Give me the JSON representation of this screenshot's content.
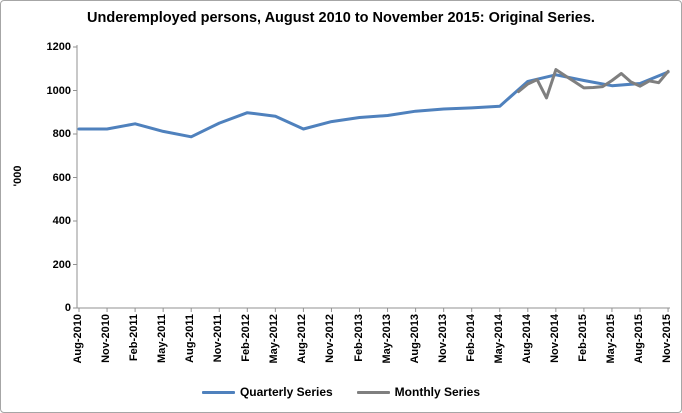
{
  "colors": {
    "quarterly": "#4F81BD",
    "monthly": "#7F7F7F",
    "axis": "#919191",
    "text": "#000000",
    "frame_border": "#A6A6A6",
    "background": "#FFFFFF"
  },
  "chart_data": {
    "type": "line",
    "title": "Underemployed persons, August 2010 to November 2015: Original Series.",
    "xlabel": "",
    "ylabel": "'000",
    "ylim": [
      0,
      1200
    ],
    "y_ticks": [
      0,
      200,
      400,
      600,
      800,
      1000,
      1200
    ],
    "grid": false,
    "legend_position": "bottom",
    "categories": [
      "Aug-2010",
      "Nov-2010",
      "Feb-2011",
      "May-2011",
      "Aug-2011",
      "Nov-2011",
      "Feb-2012",
      "May-2012",
      "Aug-2012",
      "Nov-2012",
      "Feb-2013",
      "May-2013",
      "Aug-2013",
      "Nov-2013",
      "Feb-2014",
      "May-2014",
      "Aug-2014",
      "Nov-2014",
      "Feb-2015",
      "May-2015",
      "Aug-2015",
      "Nov-2015"
    ],
    "series": [
      {
        "name": "Quarterly Series",
        "color": "#4F81BD",
        "x_labels": [
          "Aug-2010",
          "Nov-2010",
          "Feb-2011",
          "May-2011",
          "Aug-2011",
          "Nov-2011",
          "Feb-2012",
          "May-2012",
          "Aug-2012",
          "Nov-2012",
          "Feb-2013",
          "May-2013",
          "Aug-2013",
          "Nov-2013",
          "Feb-2014",
          "May-2014",
          "Aug-2014",
          "Nov-2014",
          "Feb-2015",
          "May-2015",
          "Aug-2015",
          "Nov-2015"
        ],
        "x_quarter_index": [
          0,
          1,
          2,
          3,
          4,
          5,
          6,
          7,
          8,
          9,
          10,
          11,
          12,
          13,
          14,
          15,
          16,
          17,
          18,
          19,
          20,
          21
        ],
        "values": [
          823,
          823,
          847,
          812,
          787,
          850,
          898,
          882,
          823,
          857,
          876,
          885,
          905,
          915,
          920,
          928,
          1042,
          1072,
          1046,
          1022,
          1032,
          1085
        ]
      },
      {
        "name": "Monthly Series",
        "color": "#7F7F7F",
        "x_labels": [
          "Jul-2014",
          "Aug-2014",
          "Sep-2014",
          "Oct-2014",
          "Nov-2014",
          "Dec-2014",
          "Jan-2015",
          "Feb-2015",
          "Mar-2015",
          "Apr-2015",
          "May-2015",
          "Jun-2015",
          "Jul-2015",
          "Aug-2015",
          "Sep-2015",
          "Oct-2015",
          "Nov-2015"
        ],
        "x_quarter_index": [
          15.667,
          16,
          16.333,
          16.667,
          17,
          17.333,
          17.667,
          18,
          18.333,
          18.667,
          19,
          19.333,
          19.667,
          20,
          20.333,
          20.667,
          21
        ],
        "values": [
          995,
          1030,
          1050,
          966,
          1096,
          1068,
          1040,
          1012,
          1014,
          1018,
          1046,
          1078,
          1040,
          1020,
          1044,
          1036,
          1088
        ]
      }
    ]
  }
}
